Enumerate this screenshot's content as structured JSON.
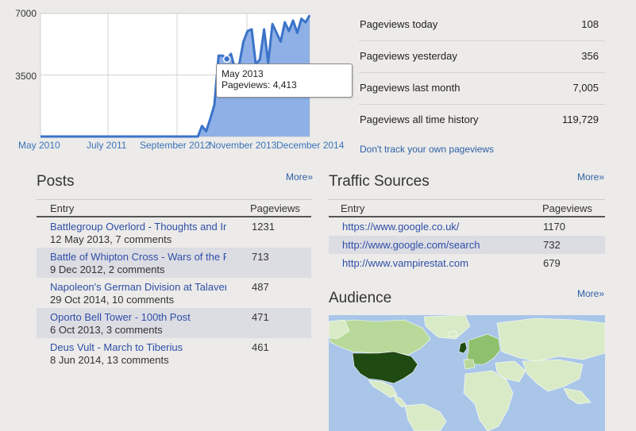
{
  "chart_data": {
    "type": "area",
    "y_ticks": [
      3500,
      7000
    ],
    "y_tick_labels": [
      "3500",
      "7000"
    ],
    "ylim": [
      0,
      7000
    ],
    "x_tick_labels": [
      "May 2010",
      "July 2011",
      "September 2012",
      "November 2013",
      "December 2014"
    ],
    "series": [
      {
        "values": [
          0,
          0,
          0,
          0,
          0,
          0,
          0,
          0,
          0,
          0,
          0,
          0,
          0,
          0,
          0,
          0,
          0,
          0,
          0,
          0,
          0,
          0,
          0,
          0,
          0,
          0,
          0,
          0,
          0,
          0,
          0,
          0,
          0,
          0,
          0,
          0,
          0,
          0,
          0,
          600,
          300,
          1000,
          1800,
          4600,
          4600,
          4413,
          4700,
          3800,
          4100,
          5400,
          6000,
          6100,
          4100,
          4400,
          6100,
          4200,
          6400,
          5900,
          5400,
          6500,
          6000,
          6600,
          5900,
          6700,
          6500,
          6900
        ],
        "color": "#3b73c9",
        "fill": "#8fb0e6"
      }
    ],
    "tooltip": {
      "line1": "May 2013",
      "line2": "Pageviews: 4,413",
      "index": 45
    }
  },
  "stats": [
    {
      "label": "Pageviews today",
      "value": "108"
    },
    {
      "label": "Pageviews yesterday",
      "value": "356"
    },
    {
      "label": "Pageviews last month",
      "value": "7,005"
    },
    {
      "label": "Pageviews all time history",
      "value": "119,729"
    }
  ],
  "dont_track_link": "Don't track your own pageviews",
  "posts": {
    "title": "Posts",
    "more": "More»",
    "col_entry": "Entry",
    "col_views": "Pageviews",
    "rows": [
      {
        "title": "Battlegroup Overlord - Thoughts and Impressions",
        "sub": "12 May 2013, 7 comments",
        "views": "1231"
      },
      {
        "title": "Battle of Whipton Cross - Wars of the Roses",
        "sub": "9 Dec 2012, 2 comments",
        "views": "713"
      },
      {
        "title": "Napoleon's German Division at Talavera",
        "sub": "29 Oct 2014, 10 comments",
        "views": "487"
      },
      {
        "title": "Oporto Bell Tower - 100th Post",
        "sub": "6 Oct 2013, 3 comments",
        "views": "471"
      },
      {
        "title": "Deus Vult - March to Tiberius",
        "sub": "8 Jun 2014, 13 comments",
        "views": "461"
      }
    ]
  },
  "traffic": {
    "title": "Traffic Sources",
    "more": "More»",
    "col_entry": "Entry",
    "col_views": "Pageviews",
    "rows": [
      {
        "url": "https://www.google.co.uk/",
        "views": "1170"
      },
      {
        "url": "http://www.google.com/search",
        "views": "732"
      },
      {
        "url": "http://www.vampirestat.com",
        "views": "679"
      }
    ]
  },
  "audience": {
    "title": "Audience",
    "more": "More»"
  }
}
